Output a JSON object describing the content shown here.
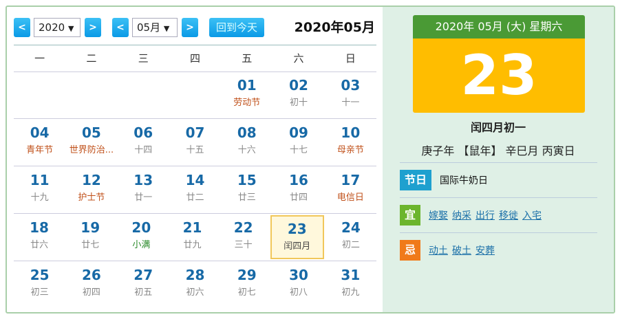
{
  "toolbar": {
    "prev_year": "<",
    "year": "2020",
    "next_year": ">",
    "prev_month": "<",
    "month": "05月",
    "next_month": ">",
    "today_button": "回到今天",
    "current_label": "2020年05月"
  },
  "weekdays": [
    "一",
    "二",
    "三",
    "四",
    "五",
    "六",
    "日"
  ],
  "weeks": [
    [
      {
        "d": "",
        "l": ""
      },
      {
        "d": "",
        "l": ""
      },
      {
        "d": "",
        "l": ""
      },
      {
        "d": "",
        "l": ""
      },
      {
        "d": "01",
        "l": "劳动节",
        "k": "f"
      },
      {
        "d": "02",
        "l": "初十"
      },
      {
        "d": "03",
        "l": "十一"
      }
    ],
    [
      {
        "d": "04",
        "l": "青年节",
        "k": "f"
      },
      {
        "d": "05",
        "l": "世界防治...",
        "k": "f"
      },
      {
        "d": "06",
        "l": "十四"
      },
      {
        "d": "07",
        "l": "十五"
      },
      {
        "d": "08",
        "l": "十六"
      },
      {
        "d": "09",
        "l": "十七"
      },
      {
        "d": "10",
        "l": "母亲节",
        "k": "f"
      }
    ],
    [
      {
        "d": "11",
        "l": "十九"
      },
      {
        "d": "12",
        "l": "护士节",
        "k": "f"
      },
      {
        "d": "13",
        "l": "廿一"
      },
      {
        "d": "14",
        "l": "廿二"
      },
      {
        "d": "15",
        "l": "廿三"
      },
      {
        "d": "16",
        "l": "廿四"
      },
      {
        "d": "17",
        "l": "电信日",
        "k": "f"
      }
    ],
    [
      {
        "d": "18",
        "l": "廿六"
      },
      {
        "d": "19",
        "l": "廿七"
      },
      {
        "d": "20",
        "l": "小满",
        "k": "t"
      },
      {
        "d": "21",
        "l": "廿九"
      },
      {
        "d": "22",
        "l": "三十"
      },
      {
        "d": "23",
        "l": "闰四月",
        "k": "cur"
      },
      {
        "d": "24",
        "l": "初二"
      }
    ],
    [
      {
        "d": "25",
        "l": "初三"
      },
      {
        "d": "26",
        "l": "初四"
      },
      {
        "d": "27",
        "l": "初五"
      },
      {
        "d": "28",
        "l": "初六"
      },
      {
        "d": "29",
        "l": "初七"
      },
      {
        "d": "30",
        "l": "初八"
      },
      {
        "d": "31",
        "l": "初九"
      }
    ]
  ],
  "detail": {
    "header": "2020年 05月 (大) 星期六",
    "day": "23",
    "lunar": "闰四月初一",
    "ganzhi": "庚子年 【鼠年】 辛巳月 丙寅日",
    "festival_tag": "节日",
    "festival": "国际牛奶日",
    "yi_tag": "宜",
    "yi": [
      "嫁娶",
      "纳采",
      "出行",
      "移徙",
      "入宅"
    ],
    "ji_tag": "忌",
    "ji": [
      "动土",
      "破土",
      "安葬"
    ]
  },
  "colors": {
    "nav_button": "#0a9ae6",
    "date_header": "#4a9a35",
    "date_box": "#ffbd00",
    "festival_tag": "#1ea0cf",
    "yi_tag": "#6cb52d",
    "ji_tag": "#f07a1a"
  }
}
